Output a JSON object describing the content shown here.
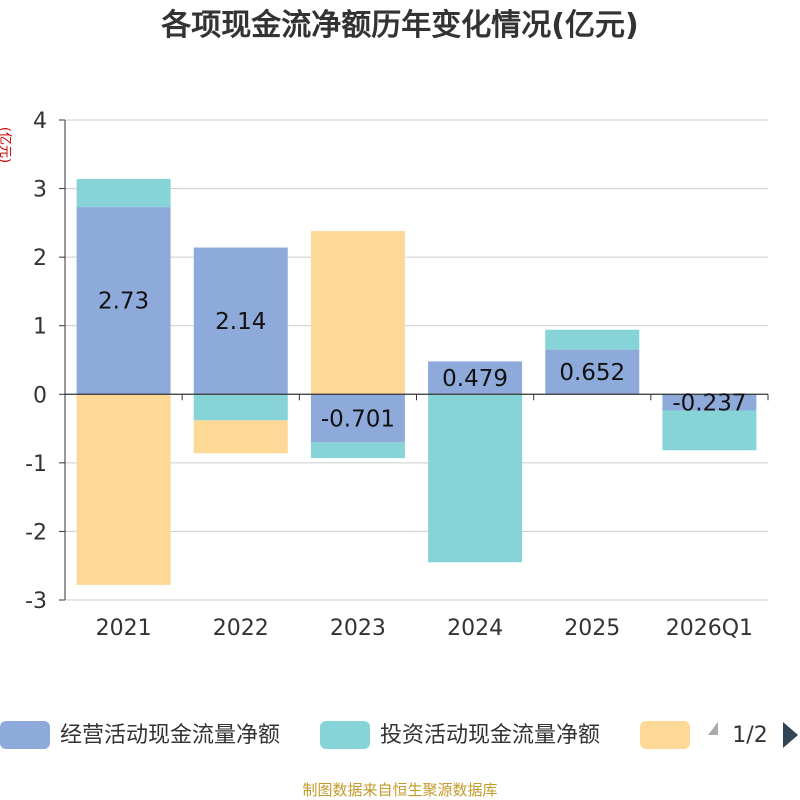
{
  "chart_data": {
    "type": "bar",
    "stacked": true,
    "title": "各项现金流净额历年变化情况(亿元)",
    "ylabel": "(亿元)",
    "ylim": [
      -3,
      4
    ],
    "yticks": [
      -3,
      -2,
      -1,
      0,
      1,
      2,
      3,
      4
    ],
    "categories": [
      "2021",
      "2022",
      "2023",
      "2024",
      "2025",
      "2026Q1"
    ],
    "series": [
      {
        "name": "经营活动现金流量净额",
        "color": "#8eaadb",
        "values": [
          2.73,
          2.14,
          -0.701,
          0.479,
          0.652,
          -0.237
        ],
        "labels": [
          "2.73",
          "2.14",
          "-0.701",
          "0.479",
          "0.652",
          "-0.237"
        ]
      },
      {
        "name": "投资活动现金流量净额",
        "color": "#87d4d8",
        "values": [
          0.41,
          -0.38,
          -0.23,
          -2.45,
          0.29,
          -0.58
        ]
      },
      {
        "name": "",
        "color": "#fdd896",
        "values": [
          -2.78,
          -0.48,
          2.38,
          0,
          0,
          0
        ]
      }
    ]
  },
  "legend": {
    "page": "1/2"
  },
  "source": "制图数据来自恒生聚源数据库"
}
